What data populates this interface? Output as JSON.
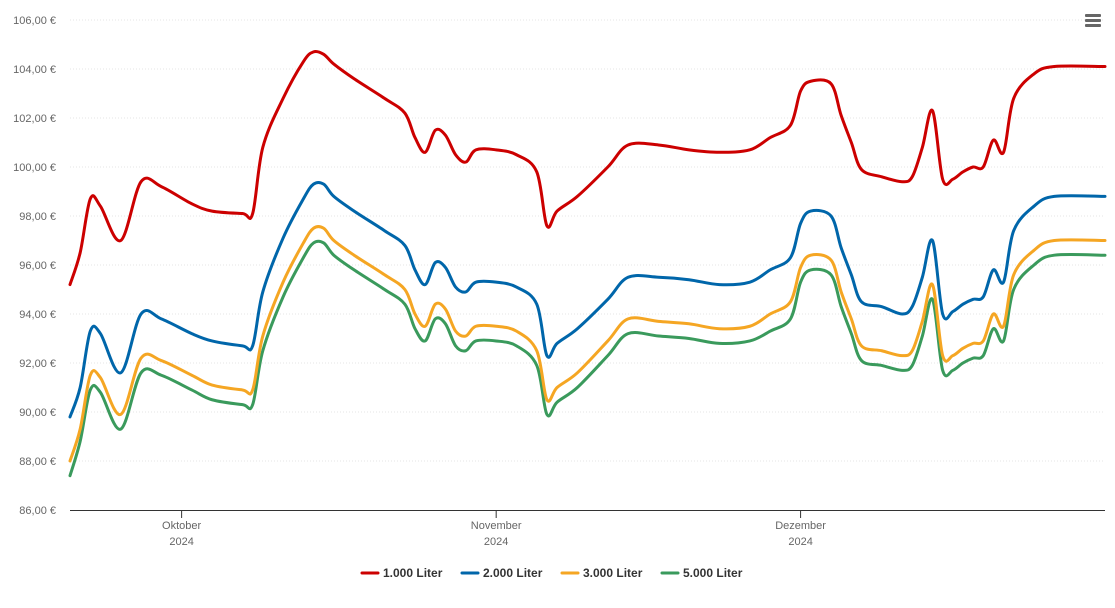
{
  "chart_data": {
    "type": "line",
    "title": "",
    "xlabel": "",
    "ylabel": "",
    "ylim": [
      86,
      106
    ],
    "y_ticks": [
      "86,00 €",
      "88,00 €",
      "90,00 €",
      "92,00 €",
      "94,00 €",
      "96,00 €",
      "98,00 €",
      "100,00 €",
      "102,00 €",
      "104,00 €",
      "106,00 €"
    ],
    "x_range": [
      "2024-09-20",
      "2024-12-31"
    ],
    "x_ticks": [
      {
        "date": "2024-10-01",
        "month": "Oktober",
        "year": "2024"
      },
      {
        "date": "2024-11-01",
        "month": "November",
        "year": "2024"
      },
      {
        "date": "2024-12-01",
        "month": "Dezember",
        "year": "2024"
      }
    ],
    "grid": true,
    "legend_position": "bottom-center",
    "series": [
      {
        "name": "1.000 Liter",
        "color": "#cc0000",
        "points": [
          [
            "2024-09-20",
            95.2
          ],
          [
            "2024-09-21",
            96.5
          ],
          [
            "2024-09-22",
            98.7
          ],
          [
            "2024-09-23",
            98.4
          ],
          [
            "2024-09-25",
            97.0
          ],
          [
            "2024-09-27",
            99.4
          ],
          [
            "2024-09-29",
            99.2
          ],
          [
            "2024-10-02",
            98.5
          ],
          [
            "2024-10-04",
            98.2
          ],
          [
            "2024-10-07",
            98.1
          ],
          [
            "2024-10-08",
            98.1
          ],
          [
            "2024-10-09",
            100.8
          ],
          [
            "2024-10-11",
            102.8
          ],
          [
            "2024-10-13",
            104.3
          ],
          [
            "2024-10-14",
            104.7
          ],
          [
            "2024-10-15",
            104.6
          ],
          [
            "2024-10-16",
            104.2
          ],
          [
            "2024-10-18",
            103.6
          ],
          [
            "2024-10-21",
            102.8
          ],
          [
            "2024-10-23",
            102.2
          ],
          [
            "2024-10-24",
            101.2
          ],
          [
            "2024-10-25",
            100.6
          ],
          [
            "2024-10-26",
            101.5
          ],
          [
            "2024-10-27",
            101.3
          ],
          [
            "2024-10-28",
            100.5
          ],
          [
            "2024-10-29",
            100.2
          ],
          [
            "2024-10-30",
            100.7
          ],
          [
            "2024-11-01",
            100.7
          ],
          [
            "2024-11-03",
            100.5
          ],
          [
            "2024-11-05",
            99.8
          ],
          [
            "2024-11-06",
            97.6
          ],
          [
            "2024-11-07",
            98.2
          ],
          [
            "2024-11-09",
            98.8
          ],
          [
            "2024-11-12",
            100.0
          ],
          [
            "2024-11-14",
            100.9
          ],
          [
            "2024-11-17",
            100.9
          ],
          [
            "2024-11-20",
            100.7
          ],
          [
            "2024-11-23",
            100.6
          ],
          [
            "2024-11-26",
            100.7
          ],
          [
            "2024-11-28",
            101.2
          ],
          [
            "2024-11-30",
            101.7
          ],
          [
            "2024-12-01",
            103.1
          ],
          [
            "2024-12-02",
            103.5
          ],
          [
            "2024-12-04",
            103.4
          ],
          [
            "2024-12-05",
            102.1
          ],
          [
            "2024-12-06",
            101.0
          ],
          [
            "2024-12-07",
            99.9
          ],
          [
            "2024-12-09",
            99.6
          ],
          [
            "2024-12-11",
            99.4
          ],
          [
            "2024-12-12",
            99.6
          ],
          [
            "2024-12-13",
            100.8
          ],
          [
            "2024-12-14",
            102.3
          ],
          [
            "2024-12-15",
            99.5
          ],
          [
            "2024-12-16",
            99.5
          ],
          [
            "2024-12-17",
            99.8
          ],
          [
            "2024-12-18",
            100.0
          ],
          [
            "2024-12-19",
            100.0
          ],
          [
            "2024-12-20",
            101.1
          ],
          [
            "2024-12-21",
            100.6
          ],
          [
            "2024-12-22",
            102.8
          ],
          [
            "2024-12-24",
            103.8
          ],
          [
            "2024-12-26",
            104.1
          ],
          [
            "2024-12-31",
            104.1
          ]
        ]
      },
      {
        "name": "2.000 Liter",
        "color": "#0066aa",
        "points": [
          [
            "2024-09-20",
            89.8
          ],
          [
            "2024-09-21",
            91.0
          ],
          [
            "2024-09-22",
            93.3
          ],
          [
            "2024-09-23",
            93.2
          ],
          [
            "2024-09-25",
            91.6
          ],
          [
            "2024-09-27",
            94.0
          ],
          [
            "2024-09-29",
            93.8
          ],
          [
            "2024-10-02",
            93.2
          ],
          [
            "2024-10-04",
            92.9
          ],
          [
            "2024-10-07",
            92.7
          ],
          [
            "2024-10-08",
            92.7
          ],
          [
            "2024-10-09",
            94.9
          ],
          [
            "2024-10-11",
            97.1
          ],
          [
            "2024-10-13",
            98.7
          ],
          [
            "2024-10-14",
            99.3
          ],
          [
            "2024-10-15",
            99.3
          ],
          [
            "2024-10-16",
            98.8
          ],
          [
            "2024-10-18",
            98.2
          ],
          [
            "2024-10-21",
            97.4
          ],
          [
            "2024-10-23",
            96.8
          ],
          [
            "2024-10-24",
            95.8
          ],
          [
            "2024-10-25",
            95.2
          ],
          [
            "2024-10-26",
            96.1
          ],
          [
            "2024-10-27",
            95.9
          ],
          [
            "2024-10-28",
            95.1
          ],
          [
            "2024-10-29",
            94.9
          ],
          [
            "2024-10-30",
            95.3
          ],
          [
            "2024-11-01",
            95.3
          ],
          [
            "2024-11-03",
            95.1
          ],
          [
            "2024-11-05",
            94.4
          ],
          [
            "2024-11-06",
            92.3
          ],
          [
            "2024-11-07",
            92.8
          ],
          [
            "2024-11-09",
            93.4
          ],
          [
            "2024-11-12",
            94.6
          ],
          [
            "2024-11-14",
            95.5
          ],
          [
            "2024-11-17",
            95.5
          ],
          [
            "2024-11-20",
            95.4
          ],
          [
            "2024-11-23",
            95.2
          ],
          [
            "2024-11-26",
            95.3
          ],
          [
            "2024-11-28",
            95.8
          ],
          [
            "2024-11-30",
            96.3
          ],
          [
            "2024-12-01",
            97.7
          ],
          [
            "2024-12-02",
            98.2
          ],
          [
            "2024-12-04",
            98.0
          ],
          [
            "2024-12-05",
            96.7
          ],
          [
            "2024-12-06",
            95.6
          ],
          [
            "2024-12-07",
            94.5
          ],
          [
            "2024-12-09",
            94.3
          ],
          [
            "2024-12-11",
            94.0
          ],
          [
            "2024-12-12",
            94.3
          ],
          [
            "2024-12-13",
            95.5
          ],
          [
            "2024-12-14",
            97.0
          ],
          [
            "2024-12-15",
            94.0
          ],
          [
            "2024-12-16",
            94.1
          ],
          [
            "2024-12-17",
            94.4
          ],
          [
            "2024-12-18",
            94.6
          ],
          [
            "2024-12-19",
            94.7
          ],
          [
            "2024-12-20",
            95.8
          ],
          [
            "2024-12-21",
            95.3
          ],
          [
            "2024-12-22",
            97.4
          ],
          [
            "2024-12-24",
            98.4
          ],
          [
            "2024-12-26",
            98.8
          ],
          [
            "2024-12-31",
            98.8
          ]
        ]
      },
      {
        "name": "3.000 Liter",
        "color": "#f5a623",
        "points": [
          [
            "2024-09-20",
            88.0
          ],
          [
            "2024-09-21",
            89.3
          ],
          [
            "2024-09-22",
            91.5
          ],
          [
            "2024-09-23",
            91.4
          ],
          [
            "2024-09-25",
            89.9
          ],
          [
            "2024-09-27",
            92.2
          ],
          [
            "2024-09-29",
            92.1
          ],
          [
            "2024-10-02",
            91.5
          ],
          [
            "2024-10-04",
            91.1
          ],
          [
            "2024-10-07",
            90.9
          ],
          [
            "2024-10-08",
            90.9
          ],
          [
            "2024-10-09",
            93.1
          ],
          [
            "2024-10-11",
            95.3
          ],
          [
            "2024-10-13",
            96.9
          ],
          [
            "2024-10-14",
            97.5
          ],
          [
            "2024-10-15",
            97.5
          ],
          [
            "2024-10-16",
            97.0
          ],
          [
            "2024-10-18",
            96.4
          ],
          [
            "2024-10-21",
            95.6
          ],
          [
            "2024-10-23",
            95.0
          ],
          [
            "2024-10-24",
            94.0
          ],
          [
            "2024-10-25",
            93.5
          ],
          [
            "2024-10-26",
            94.4
          ],
          [
            "2024-10-27",
            94.2
          ],
          [
            "2024-10-28",
            93.3
          ],
          [
            "2024-10-29",
            93.1
          ],
          [
            "2024-10-30",
            93.5
          ],
          [
            "2024-11-01",
            93.5
          ],
          [
            "2024-11-03",
            93.3
          ],
          [
            "2024-11-05",
            92.5
          ],
          [
            "2024-11-06",
            90.5
          ],
          [
            "2024-11-07",
            91.0
          ],
          [
            "2024-11-09",
            91.6
          ],
          [
            "2024-11-12",
            92.9
          ],
          [
            "2024-11-14",
            93.8
          ],
          [
            "2024-11-17",
            93.7
          ],
          [
            "2024-11-20",
            93.6
          ],
          [
            "2024-11-23",
            93.4
          ],
          [
            "2024-11-26",
            93.5
          ],
          [
            "2024-11-28",
            94.0
          ],
          [
            "2024-11-30",
            94.5
          ],
          [
            "2024-12-01",
            95.9
          ],
          [
            "2024-12-02",
            96.4
          ],
          [
            "2024-12-04",
            96.2
          ],
          [
            "2024-12-05",
            94.9
          ],
          [
            "2024-12-06",
            93.8
          ],
          [
            "2024-12-07",
            92.7
          ],
          [
            "2024-12-09",
            92.5
          ],
          [
            "2024-12-11",
            92.3
          ],
          [
            "2024-12-12",
            92.5
          ],
          [
            "2024-12-13",
            93.7
          ],
          [
            "2024-12-14",
            95.2
          ],
          [
            "2024-12-15",
            92.3
          ],
          [
            "2024-12-16",
            92.3
          ],
          [
            "2024-12-17",
            92.6
          ],
          [
            "2024-12-18",
            92.8
          ],
          [
            "2024-12-19",
            92.9
          ],
          [
            "2024-12-20",
            94.0
          ],
          [
            "2024-12-21",
            93.5
          ],
          [
            "2024-12-22",
            95.6
          ],
          [
            "2024-12-24",
            96.6
          ],
          [
            "2024-12-26",
            97.0
          ],
          [
            "2024-12-31",
            97.0
          ]
        ]
      },
      {
        "name": "5.000 Liter",
        "color": "#3a9a5c",
        "points": [
          [
            "2024-09-20",
            87.4
          ],
          [
            "2024-09-21",
            88.8
          ],
          [
            "2024-09-22",
            90.9
          ],
          [
            "2024-09-23",
            90.8
          ],
          [
            "2024-09-25",
            89.3
          ],
          [
            "2024-09-27",
            91.6
          ],
          [
            "2024-09-29",
            91.5
          ],
          [
            "2024-10-02",
            90.9
          ],
          [
            "2024-10-04",
            90.5
          ],
          [
            "2024-10-07",
            90.3
          ],
          [
            "2024-10-08",
            90.3
          ],
          [
            "2024-10-09",
            92.5
          ],
          [
            "2024-10-11",
            94.7
          ],
          [
            "2024-10-13",
            96.3
          ],
          [
            "2024-10-14",
            96.9
          ],
          [
            "2024-10-15",
            96.9
          ],
          [
            "2024-10-16",
            96.4
          ],
          [
            "2024-10-18",
            95.8
          ],
          [
            "2024-10-21",
            95.0
          ],
          [
            "2024-10-23",
            94.4
          ],
          [
            "2024-10-24",
            93.4
          ],
          [
            "2024-10-25",
            92.9
          ],
          [
            "2024-10-26",
            93.8
          ],
          [
            "2024-10-27",
            93.6
          ],
          [
            "2024-10-28",
            92.7
          ],
          [
            "2024-10-29",
            92.5
          ],
          [
            "2024-10-30",
            92.9
          ],
          [
            "2024-11-01",
            92.9
          ],
          [
            "2024-11-03",
            92.7
          ],
          [
            "2024-11-05",
            91.9
          ],
          [
            "2024-11-06",
            89.9
          ],
          [
            "2024-11-07",
            90.4
          ],
          [
            "2024-11-09",
            91.0
          ],
          [
            "2024-11-12",
            92.3
          ],
          [
            "2024-11-14",
            93.2
          ],
          [
            "2024-11-17",
            93.1
          ],
          [
            "2024-11-20",
            93.0
          ],
          [
            "2024-11-23",
            92.8
          ],
          [
            "2024-11-26",
            92.9
          ],
          [
            "2024-11-28",
            93.3
          ],
          [
            "2024-11-30",
            93.8
          ],
          [
            "2024-12-01",
            95.3
          ],
          [
            "2024-12-02",
            95.8
          ],
          [
            "2024-12-04",
            95.6
          ],
          [
            "2024-12-05",
            94.3
          ],
          [
            "2024-12-06",
            93.2
          ],
          [
            "2024-12-07",
            92.1
          ],
          [
            "2024-12-09",
            91.9
          ],
          [
            "2024-12-11",
            91.7
          ],
          [
            "2024-12-12",
            91.9
          ],
          [
            "2024-12-13",
            93.1
          ],
          [
            "2024-12-14",
            94.6
          ],
          [
            "2024-12-15",
            91.7
          ],
          [
            "2024-12-16",
            91.7
          ],
          [
            "2024-12-17",
            92.0
          ],
          [
            "2024-12-18",
            92.2
          ],
          [
            "2024-12-19",
            92.3
          ],
          [
            "2024-12-20",
            93.4
          ],
          [
            "2024-12-21",
            92.9
          ],
          [
            "2024-12-22",
            95.0
          ],
          [
            "2024-12-24",
            96.0
          ],
          [
            "2024-12-26",
            96.4
          ],
          [
            "2024-12-31",
            96.4
          ]
        ]
      }
    ]
  },
  "menu": {
    "icon": "hamburger-menu-icon"
  }
}
